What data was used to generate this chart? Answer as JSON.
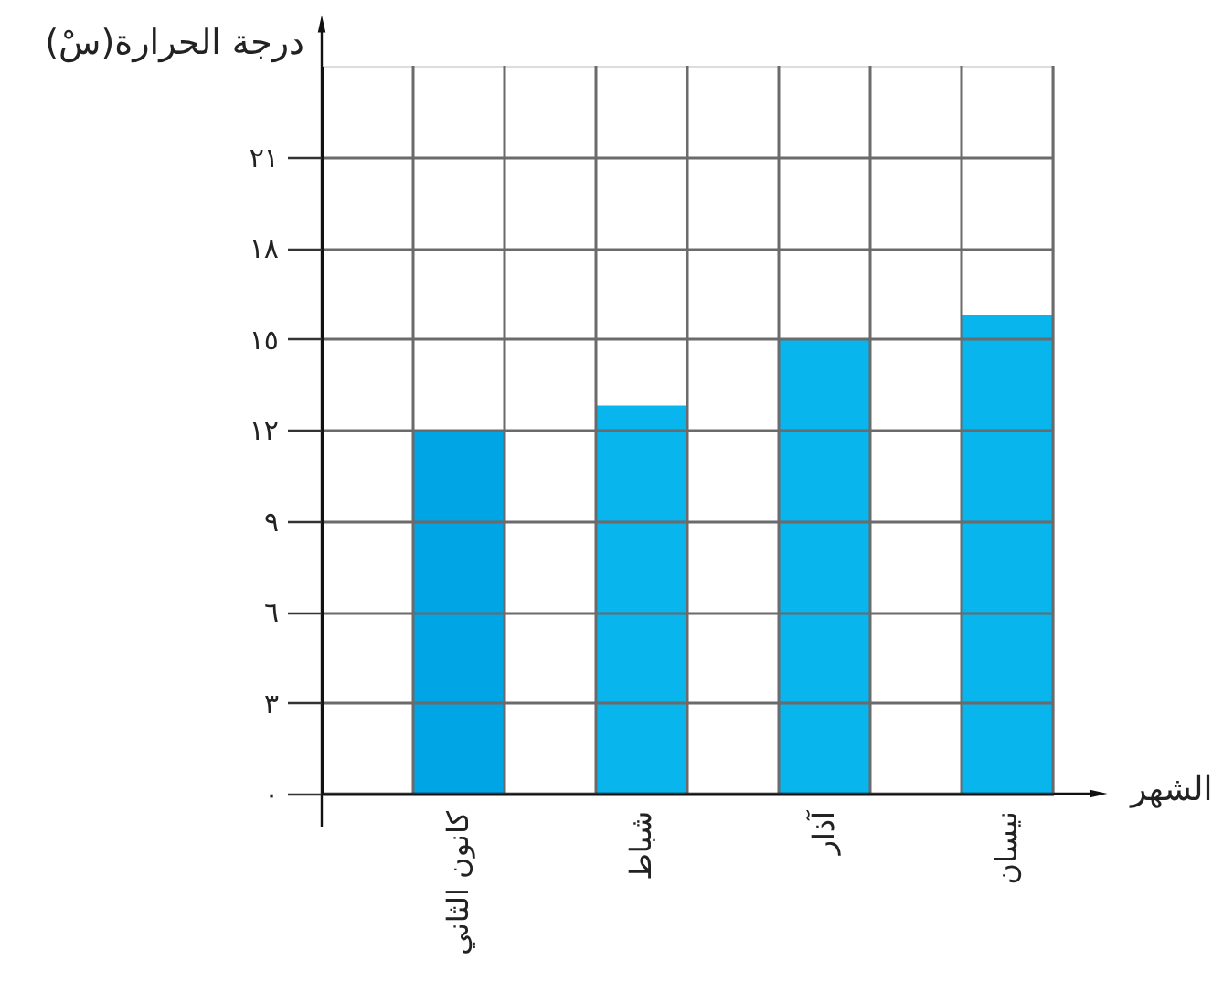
{
  "chart_data": {
    "type": "bar",
    "xlabel": "الشهر",
    "ylabel": "درجة الحرارة(سْ)",
    "categories": [
      "كانون الثاني",
      "شباط",
      "آذار",
      "نيسان"
    ],
    "values": [
      12,
      12.8,
      15,
      15.8
    ],
    "colors": [
      "#00a5e5",
      "#08b5ec",
      "#08b5ec",
      "#08b5ec"
    ],
    "ylim": [
      0,
      24
    ],
    "yticks": [
      {
        "value": 0,
        "label": "٠"
      },
      {
        "value": 3,
        "label": "٣"
      },
      {
        "value": 6,
        "label": "٦"
      },
      {
        "value": 9,
        "label": "٩"
      },
      {
        "value": 12,
        "label": "١٢"
      },
      {
        "value": 15,
        "label": "١٥"
      },
      {
        "value": 18,
        "label": "١٨"
      },
      {
        "value": 21,
        "label": "٢١"
      }
    ],
    "grid": true
  }
}
